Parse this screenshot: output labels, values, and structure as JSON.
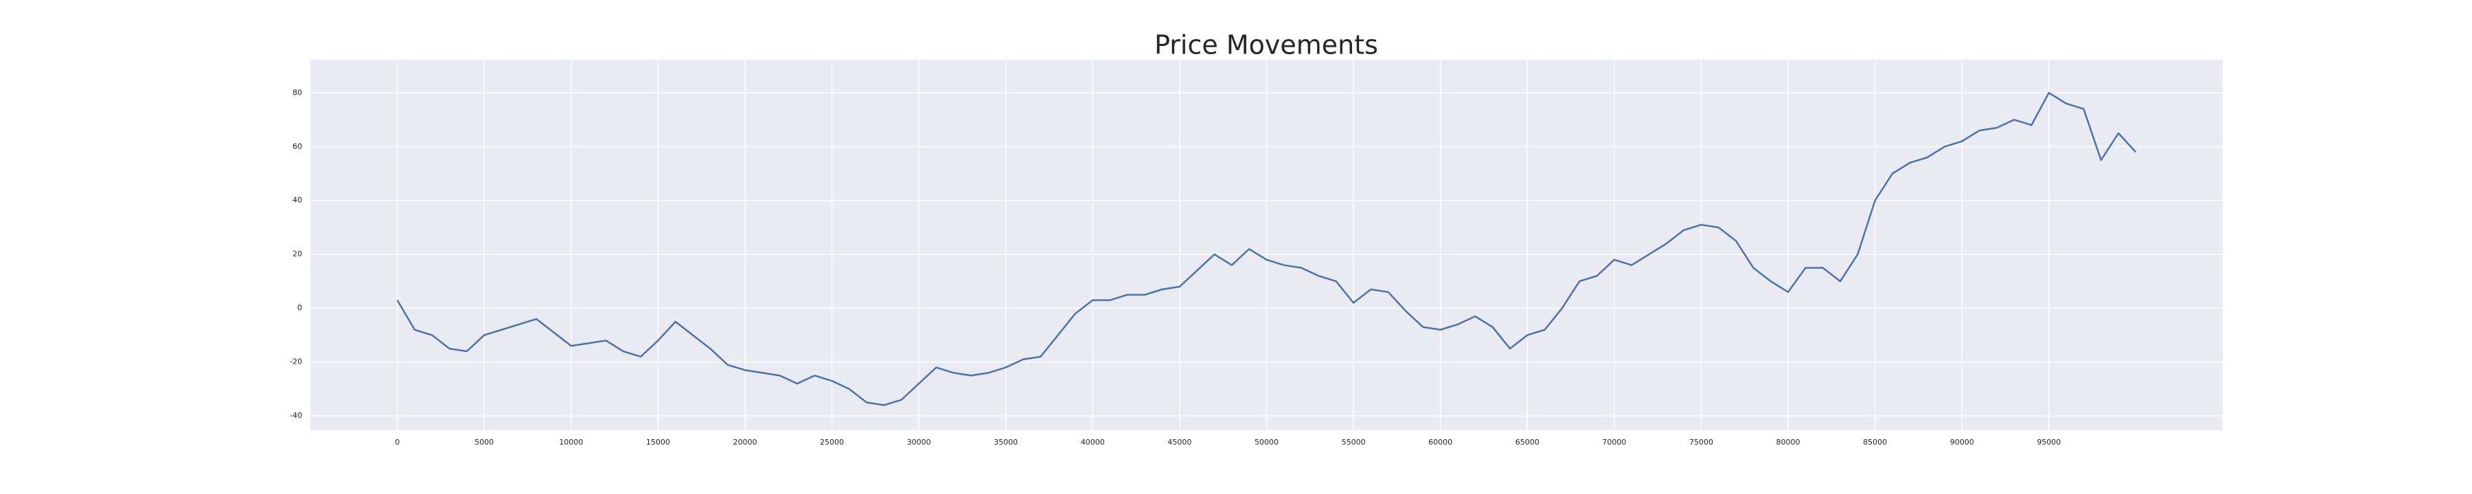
{
  "chart_data": {
    "type": "line",
    "title": "Price Movements",
    "x": [
      0,
      1000,
      2000,
      3000,
      4000,
      5000,
      6000,
      7000,
      8000,
      9000,
      10000,
      11000,
      12000,
      13000,
      14000,
      15000,
      16000,
      17000,
      18000,
      19000,
      20000,
      21000,
      22000,
      23000,
      24000,
      25000,
      26000,
      27000,
      28000,
      29000,
      30000,
      31000,
      32000,
      33000,
      34000,
      35000,
      36000,
      37000,
      38000,
      39000,
      40000,
      41000,
      42000,
      43000,
      44000,
      45000,
      46000,
      47000,
      48000,
      49000,
      50000,
      51000,
      52000,
      53000,
      54000,
      55000,
      56000,
      57000,
      58000,
      59000,
      60000,
      61000,
      62000,
      63000,
      64000,
      65000,
      66000,
      67000,
      68000,
      69000,
      70000,
      71000,
      72000,
      73000,
      74000,
      75000,
      76000,
      77000,
      78000,
      79000,
      80000,
      81000,
      82000,
      83000,
      84000,
      85000,
      86000,
      87000,
      88000,
      89000,
      90000,
      91000,
      92000,
      93000,
      94000,
      95000,
      96000,
      97000,
      98000,
      99000,
      99999
    ],
    "values": [
      3,
      -8,
      -10,
      -15,
      -16,
      -10,
      -8,
      -6,
      -4,
      -9,
      -14,
      -13,
      -12,
      -16,
      -18,
      -12,
      -5,
      -10,
      -15,
      -21,
      -23,
      -24,
      -25,
      -28,
      -25,
      -27,
      -30,
      -35,
      -36,
      -34,
      -28,
      -22,
      -24,
      -25,
      -24,
      -22,
      -19,
      -18,
      -10,
      -2,
      3,
      3,
      5,
      5,
      7,
      8,
      14,
      20,
      16,
      22,
      18,
      16,
      15,
      12,
      10,
      2,
      7,
      6,
      -1,
      -7,
      -8,
      -6,
      -3,
      -7,
      -15,
      -10,
      -8,
      0,
      10,
      12,
      18,
      16,
      20,
      24,
      29,
      31,
      30,
      25,
      15,
      10,
      6,
      15,
      15,
      10,
      20,
      40,
      50,
      54,
      56,
      60,
      62,
      66,
      67,
      70,
      68,
      80,
      76,
      74,
      55,
      65,
      58
    ],
    "color": "#4c72b0",
    "xlim": [
      -5000,
      105000
    ],
    "xticks": [
      0,
      5000,
      10000,
      15000,
      20000,
      25000,
      30000,
      35000,
      40000,
      45000,
      50000,
      55000,
      60000,
      65000,
      70000,
      75000,
      80000,
      85000,
      90000,
      95000
    ],
    "ylim": [
      -45.3,
      92.3
    ],
    "yticks": [
      -40,
      -20,
      0,
      20,
      40,
      60,
      80
    ],
    "grid": true
  }
}
